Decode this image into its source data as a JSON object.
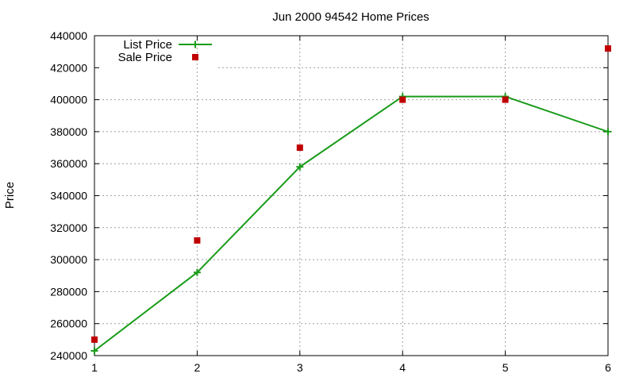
{
  "chart_data": {
    "type": "line",
    "title": "Jun 2000 94542 Home Prices",
    "xlabel": "",
    "ylabel": "Price",
    "xlim": [
      1,
      6
    ],
    "ylim": [
      240000,
      440000
    ],
    "x_ticks": [
      "1",
      "2",
      "3",
      "4",
      "5",
      "6"
    ],
    "y_ticks": [
      "240000",
      "260000",
      "280000",
      "300000",
      "320000",
      "340000",
      "360000",
      "380000",
      "400000",
      "420000",
      "440000"
    ],
    "grid": true,
    "legend_position": "top-left",
    "series": [
      {
        "name": "List Price",
        "style": "lines+points",
        "marker": "plus",
        "color": "#1a9b1a",
        "x": [
          1,
          2,
          3,
          4,
          5,
          6
        ],
        "values": [
          243000,
          292000,
          358000,
          402000,
          402000,
          380000
        ]
      },
      {
        "name": "Sale Price",
        "style": "points",
        "marker": "square",
        "color": "#c00000",
        "x": [
          1,
          2,
          3,
          4,
          5,
          6
        ],
        "values": [
          250000,
          312000,
          370000,
          400000,
          400000,
          432000
        ]
      }
    ]
  }
}
